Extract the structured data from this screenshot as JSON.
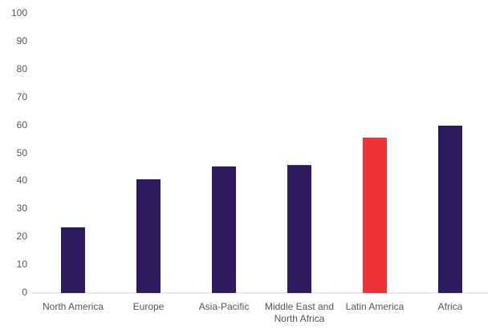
{
  "chart_data": {
    "type": "bar",
    "categories": [
      "North America",
      "Europe",
      "Asia-Pacific",
      "Middle East and North Africa",
      "Latin America",
      "Africa"
    ],
    "values": [
      23.5,
      40.7,
      45.3,
      45.8,
      55.6,
      59.9
    ],
    "colors": [
      "#2e1a5e",
      "#2e1a5e",
      "#2e1a5e",
      "#2e1a5e",
      "#ee3338",
      "#2e1a5e"
    ],
    "ylim": [
      0,
      100
    ],
    "yticks": [
      0,
      10,
      20,
      30,
      40,
      50,
      60,
      70,
      80,
      90,
      100
    ],
    "grid": false
  }
}
